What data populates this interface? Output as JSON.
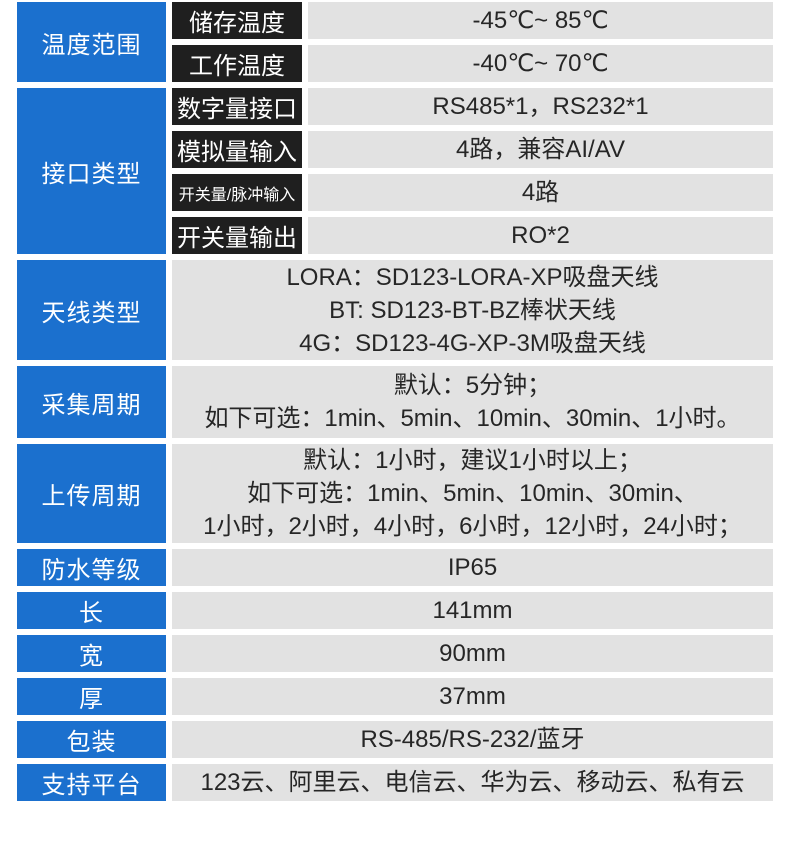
{
  "colors": {
    "label_blue": "#1b70ce",
    "sublabel_black": "#1f1f1f",
    "value_gray": "#e2e2e2",
    "value_text": "#262626"
  },
  "spec_table": {
    "sections": [
      {
        "label": "温度范围",
        "rows": [
          {
            "name": "储存温度",
            "value": "-45℃~ 85℃"
          },
          {
            "name": "工作温度",
            "value": "-40℃~ 70℃"
          }
        ]
      },
      {
        "label": "接口类型",
        "rows": [
          {
            "name": "数字量接口",
            "value": "RS485*1，RS232*1"
          },
          {
            "name": "模拟量输入",
            "value": "4路，兼容AI/AV"
          },
          {
            "name": "开关量/脉冲输入",
            "value": "4路"
          },
          {
            "name": "开关量输出",
            "value": "RO*2"
          }
        ]
      },
      {
        "label": "天线类型",
        "value": "LORA：SD123-LORA-XP吸盘天线\nBT: SD123-BT-BZ棒状天线\n4G：SD123-4G-XP-3M吸盘天线"
      },
      {
        "label": "采集周期",
        "value": "默认：5分钟；\n如下可选：1min、5min、10min、30min、1小时。"
      },
      {
        "label": "上传周期",
        "value": "默认：1小时，建议1小时以上；\n如下可选：1min、5min、10min、30min、\n1小时，2小时，4小时，6小时，12小时，24小时；"
      },
      {
        "label": "防水等级",
        "value": "IP65"
      },
      {
        "label": "长",
        "value": "141mm"
      },
      {
        "label": "宽",
        "value": "90mm"
      },
      {
        "label": "厚",
        "value": "37mm"
      },
      {
        "label": "包装",
        "value": "RS-485/RS-232/蓝牙"
      },
      {
        "label": "支持平台",
        "value": "123云、阿里云、电信云、华为云、移动云、私有云"
      }
    ]
  }
}
